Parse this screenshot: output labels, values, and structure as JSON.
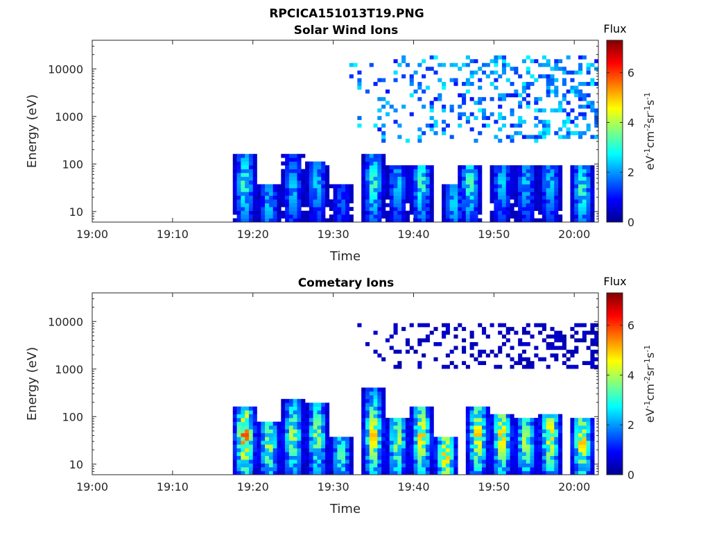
{
  "figure": {
    "title": "RPCICA151013T19.PNG"
  },
  "colorbar": {
    "label": "Flux",
    "unit_base": "eV",
    "unit_sup1": "-1",
    "unit_cm": "cm",
    "unit_sup2": "-2",
    "unit_sr": "sr",
    "unit_sup3": "-1",
    "unit_s": "s",
    "unit_sup4": "-1",
    "ticks": [
      "0",
      "2",
      "4",
      "6"
    ],
    "range": [
      0,
      7.3
    ],
    "colormap": [
      "#00008f",
      "#0000ff",
      "#0080ff",
      "#00ffff",
      "#80ff80",
      "#ffff00",
      "#ff8000",
      "#ff0000",
      "#800000"
    ]
  },
  "chart_data": [
    {
      "type": "heatmap",
      "title": "Solar Wind Ions",
      "xlabel": "Time",
      "ylabel": "Energy (eV)",
      "yscale": "log",
      "xlim": [
        "19:00",
        "20:03"
      ],
      "ylim": [
        6,
        40000
      ],
      "x_ticks": [
        "19:00",
        "19:10",
        "19:20",
        "19:30",
        "19:40",
        "19:50",
        "20:00"
      ],
      "y_ticks": [
        "10",
        "100",
        "1000",
        "10000"
      ],
      "bursts": [
        {
          "time": "19:19",
          "energy_peak": 40,
          "energy_max": 150,
          "flux_peak": 4
        },
        {
          "time": "19:22",
          "energy_peak": 15,
          "energy_max": 40,
          "flux_peak": 3
        },
        {
          "time": "19:25",
          "energy_peak": 30,
          "energy_max": 150,
          "flux_peak": 3
        },
        {
          "time": "19:28",
          "energy_peak": 40,
          "energy_max": 120,
          "flux_peak": 3
        },
        {
          "time": "19:31",
          "energy_peak": 15,
          "energy_max": 40,
          "flux_peak": 2
        },
        {
          "time": "19:35",
          "energy_peak": 40,
          "energy_max": 150,
          "flux_peak": 4
        },
        {
          "time": "19:38",
          "energy_peak": 40,
          "energy_max": 100,
          "flux_peak": 3
        },
        {
          "time": "19:41",
          "energy_peak": 40,
          "energy_max": 100,
          "flux_peak": 4
        },
        {
          "time": "19:45",
          "energy_peak": 15,
          "energy_max": 40,
          "flux_peak": 3
        },
        {
          "time": "19:47",
          "energy_peak": 40,
          "energy_max": 100,
          "flux_peak": 4
        },
        {
          "time": "19:51",
          "energy_peak": 40,
          "energy_max": 100,
          "flux_peak": 3
        },
        {
          "time": "19:54",
          "energy_peak": 40,
          "energy_max": 100,
          "flux_peak": 3
        },
        {
          "time": "19:57",
          "energy_peak": 40,
          "energy_max": 100,
          "flux_peak": 3
        },
        {
          "time": "20:01",
          "energy_peak": 30,
          "energy_max": 100,
          "flux_peak": 4
        }
      ],
      "background": {
        "time_start": "19:32",
        "energy_min": 300,
        "energy_max": 20000,
        "flux": 2.5
      }
    },
    {
      "type": "heatmap",
      "title": "Cometary Ions",
      "xlabel": "Time",
      "ylabel": "Energy (eV)",
      "yscale": "log",
      "xlim": [
        "19:00",
        "20:03"
      ],
      "ylim": [
        6,
        40000
      ],
      "x_ticks": [
        "19:00",
        "19:10",
        "19:20",
        "19:30",
        "19:40",
        "19:50",
        "20:00"
      ],
      "y_ticks": [
        "10",
        "100",
        "1000",
        "10000"
      ],
      "bursts": [
        {
          "time": "19:19",
          "energy_peak": 40,
          "energy_max": 150,
          "flux_peak": 7
        },
        {
          "time": "19:22",
          "energy_peak": 25,
          "energy_max": 80,
          "flux_peak": 5
        },
        {
          "time": "19:25",
          "energy_peak": 40,
          "energy_max": 250,
          "flux_peak": 5
        },
        {
          "time": "19:28",
          "energy_peak": 40,
          "energy_max": 200,
          "flux_peak": 5
        },
        {
          "time": "19:31",
          "energy_peak": 15,
          "energy_max": 40,
          "flux_peak": 4
        },
        {
          "time": "19:35",
          "energy_peak": 40,
          "energy_max": 400,
          "flux_peak": 6
        },
        {
          "time": "19:38",
          "energy_peak": 30,
          "energy_max": 100,
          "flux_peak": 5
        },
        {
          "time": "19:41",
          "energy_peak": 40,
          "energy_max": 150,
          "flux_peak": 6
        },
        {
          "time": "19:44",
          "energy_peak": 15,
          "energy_max": 40,
          "flux_peak": 6
        },
        {
          "time": "19:48",
          "energy_peak": 40,
          "energy_max": 150,
          "flux_peak": 6
        },
        {
          "time": "19:51",
          "energy_peak": 40,
          "energy_max": 120,
          "flux_peak": 6
        },
        {
          "time": "19:54",
          "energy_peak": 30,
          "energy_max": 100,
          "flux_peak": 5
        },
        {
          "time": "19:57",
          "energy_peak": 40,
          "energy_max": 120,
          "flux_peak": 6
        },
        {
          "time": "20:01",
          "energy_peak": 30,
          "energy_max": 100,
          "flux_peak": 6
        }
      ],
      "background": {
        "time_start": "19:32",
        "energy_min": 1000,
        "energy_max": 10000,
        "flux": 0.5
      }
    }
  ]
}
